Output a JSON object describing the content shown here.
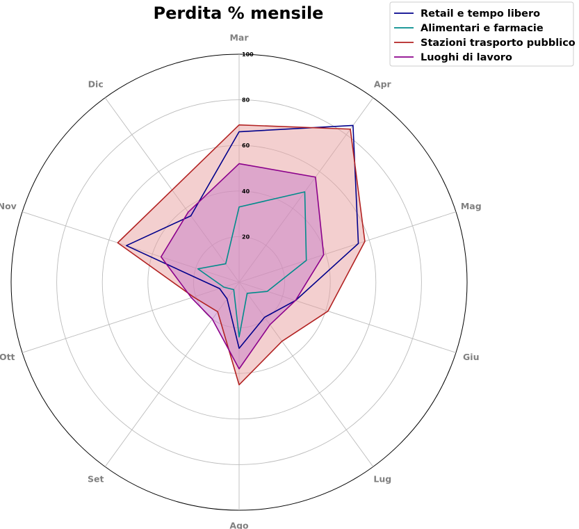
{
  "chart_data": {
    "type": "radar",
    "title": "Perdita % mensile",
    "categories": [
      "Mar",
      "Apr",
      "Mag",
      "Giu",
      "Lug",
      "Ago",
      "Set",
      "Ott",
      "Nov",
      "Dic"
    ],
    "rlim": [
      0,
      100
    ],
    "rticks": [
      "20",
      "40",
      "60",
      "80",
      "100"
    ],
    "rtick_values": [
      20,
      40,
      60,
      80,
      100
    ],
    "grid": true,
    "legend_placement": "upper-right",
    "series": [
      {
        "name": "Retail e tempo libero",
        "color": "#00008b",
        "fill": false,
        "values": [
          66,
          85,
          55,
          26,
          19,
          29,
          9,
          9,
          52,
          36
        ]
      },
      {
        "name": "Alimentari e farmacie",
        "color": "#008b8b",
        "fill": false,
        "values": [
          33,
          49,
          31,
          13,
          6,
          24,
          4,
          7,
          19,
          10
        ]
      },
      {
        "name": "Stazioni trasporto pubblico",
        "color": "#b22222",
        "fill": true,
        "fill_color": "#e8a0a0",
        "values": [
          69,
          83,
          58,
          41,
          32,
          45,
          16,
          21,
          56,
          50
        ]
      },
      {
        "name": "Luoghi di lavoro",
        "color": "#8b008b",
        "fill": true,
        "fill_color": "#c87ec8",
        "values": [
          52,
          57,
          39,
          26,
          23,
          38,
          20,
          22,
          36,
          38
        ]
      }
    ]
  }
}
